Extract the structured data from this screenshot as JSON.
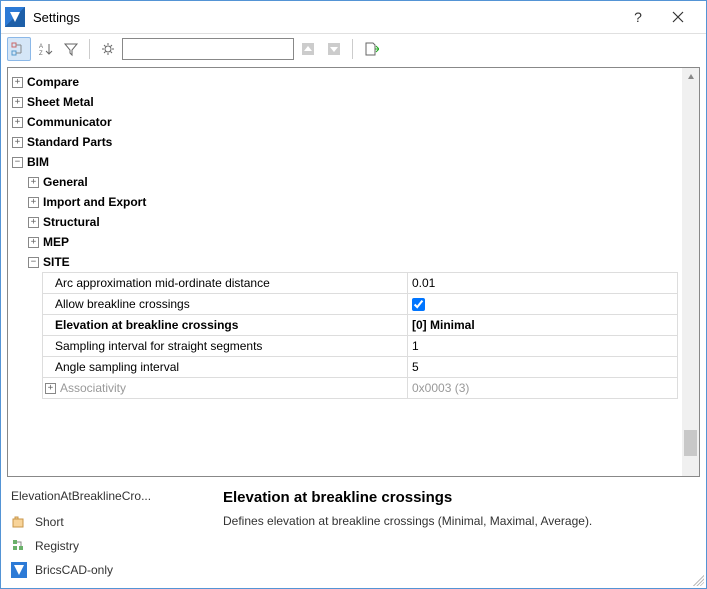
{
  "window": {
    "title": "Settings"
  },
  "toolbar": {
    "search_placeholder": ""
  },
  "tree": {
    "top_nodes": [
      {
        "label": "Compare",
        "expanded": false
      },
      {
        "label": "Sheet Metal",
        "expanded": false
      },
      {
        "label": "Communicator",
        "expanded": false
      },
      {
        "label": "Standard Parts",
        "expanded": false
      }
    ],
    "bim": {
      "label": "BIM",
      "expanded": true,
      "children": [
        {
          "label": "General",
          "expanded": false
        },
        {
          "label": "Import and Export",
          "expanded": false
        },
        {
          "label": "Structural",
          "expanded": false
        },
        {
          "label": "MEP",
          "expanded": false
        }
      ],
      "site": {
        "label": "SITE",
        "expanded": true,
        "properties": [
          {
            "name": "Arc approximation mid-ordinate distance",
            "value": "0.01",
            "type": "text"
          },
          {
            "name": "Allow breakline crossings",
            "value": "true",
            "type": "checkbox"
          },
          {
            "name": "Elevation at breakline crossings",
            "value": "[0] Minimal",
            "type": "text",
            "selected": true
          },
          {
            "name": "Sampling interval for straight segments",
            "value": "1",
            "type": "text"
          },
          {
            "name": "Angle sampling interval",
            "value": "5",
            "type": "text"
          }
        ],
        "assoc": {
          "label": "Associativity",
          "value": "0x0003 (3)"
        }
      }
    }
  },
  "info": {
    "property_name": "ElevationAtBreaklineCro...",
    "title": "Elevation at breakline crossings",
    "description": "Defines elevation at breakline crossings (Minimal, Maximal, Average).",
    "tags": [
      {
        "icon": "short",
        "label": "Short"
      },
      {
        "icon": "registry",
        "label": "Registry"
      },
      {
        "icon": "bricscad",
        "label": "BricsCAD-only"
      }
    ]
  },
  "colors": {
    "window_border": "#5494d5",
    "toolbar_active_bg": "#d5e6f7",
    "toolbar_active_border": "#8bb8e8",
    "grid_border": "#dddddd"
  }
}
